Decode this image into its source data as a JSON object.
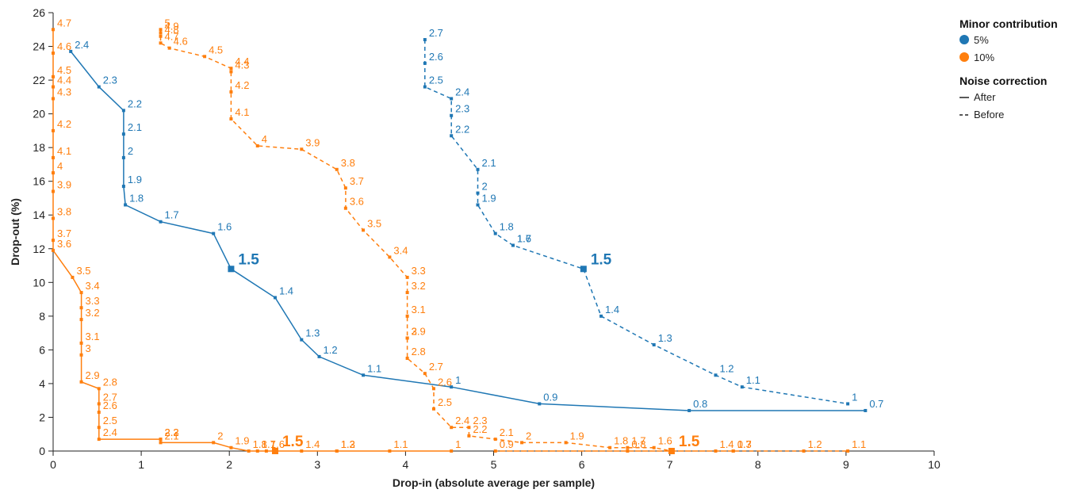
{
  "chart_data": {
    "type": "line",
    "xlabel": "Drop-in (absolute average per sample)",
    "ylabel": "Drop-out (%)",
    "xlim": [
      0,
      10
    ],
    "ylim": [
      0,
      26
    ],
    "x_ticks": [
      "0",
      "1",
      "2",
      "3",
      "4",
      "5",
      "6",
      "7",
      "8",
      "9",
      "10"
    ],
    "y_ticks": [
      "0",
      "2",
      "4",
      "6",
      "8",
      "10",
      "12",
      "14",
      "16",
      "18",
      "20",
      "22",
      "24",
      "26"
    ],
    "grid": false,
    "legend_position": "top-right",
    "legend": {
      "color_title": "Minor contribution",
      "color_items": [
        {
          "label": "5%",
          "color": "#1f77b4"
        },
        {
          "label": "10%",
          "color": "#ff7f0e"
        }
      ],
      "style_title": "Noise correction",
      "style_items": [
        {
          "label": "After",
          "dash": "solid"
        },
        {
          "label": "Before",
          "dash": "dashed"
        }
      ]
    },
    "colors": {
      "5%": "#1f77b4",
      "10%": "#ff7f0e"
    },
    "highlight_label": "1.5",
    "series": [
      {
        "contribution": "5%",
        "correction": "After",
        "points": [
          {
            "x": 0.2,
            "y": 23.7,
            "label": "2.4"
          },
          {
            "x": 0.52,
            "y": 21.6,
            "label": "2.3"
          },
          {
            "x": 0.8,
            "y": 20.2,
            "label": "2.2"
          },
          {
            "x": 0.8,
            "y": 18.8,
            "label": "2.1"
          },
          {
            "x": 0.8,
            "y": 17.4,
            "label": "2"
          },
          {
            "x": 0.8,
            "y": 15.7,
            "label": "1.9"
          },
          {
            "x": 0.82,
            "y": 14.6,
            "label": "1.8"
          },
          {
            "x": 1.22,
            "y": 13.6,
            "label": "1.7"
          },
          {
            "x": 1.82,
            "y": 12.9,
            "label": "1.6"
          },
          {
            "x": 2.02,
            "y": 10.8,
            "label": "1.5"
          },
          {
            "x": 2.52,
            "y": 9.1,
            "label": "1.4"
          },
          {
            "x": 2.82,
            "y": 6.6,
            "label": "1.3"
          },
          {
            "x": 3.02,
            "y": 5.6,
            "label": "1.2"
          },
          {
            "x": 3.52,
            "y": 4.5,
            "label": "1.1"
          },
          {
            "x": 4.52,
            "y": 3.8,
            "label": "1"
          },
          {
            "x": 5.52,
            "y": 2.8,
            "label": "0.9"
          },
          {
            "x": 7.22,
            "y": 2.4,
            "label": "0.8"
          },
          {
            "x": 9.22,
            "y": 2.4,
            "label": "0.7"
          }
        ]
      },
      {
        "contribution": "5%",
        "correction": "Before",
        "points": [
          {
            "x": 4.22,
            "y": 24.4,
            "label": "2.7"
          },
          {
            "x": 4.22,
            "y": 23.0,
            "label": "2.6"
          },
          {
            "x": 4.22,
            "y": 21.6,
            "label": "2.5"
          },
          {
            "x": 4.52,
            "y": 20.9,
            "label": "2.4"
          },
          {
            "x": 4.52,
            "y": 19.9,
            "label": "2.3"
          },
          {
            "x": 4.52,
            "y": 18.7,
            "label": "2.2"
          },
          {
            "x": 4.82,
            "y": 16.7,
            "label": "2.1"
          },
          {
            "x": 4.82,
            "y": 15.3,
            "label": "2"
          },
          {
            "x": 4.82,
            "y": 14.6,
            "label": "1.9"
          },
          {
            "x": 5.02,
            "y": 12.9,
            "label": "1.8"
          },
          {
            "x": 5.22,
            "y": 12.2,
            "label": "1.7"
          },
          {
            "x": 5.22,
            "y": 12.2,
            "label": "1.6"
          },
          {
            "x": 6.02,
            "y": 10.8,
            "label": "1.5"
          },
          {
            "x": 6.22,
            "y": 8.0,
            "label": "1.4"
          },
          {
            "x": 6.82,
            "y": 6.3,
            "label": "1.3"
          },
          {
            "x": 7.52,
            "y": 4.5,
            "label": "1.2"
          },
          {
            "x": 7.82,
            "y": 3.8,
            "label": "1.1"
          },
          {
            "x": 9.02,
            "y": 2.8,
            "label": "1"
          }
        ]
      },
      {
        "contribution": "10%",
        "correction": "After",
        "points": [
          {
            "x": 0.0,
            "y": 25.0,
            "label": "4.7"
          },
          {
            "x": 0.0,
            "y": 23.6,
            "label": "4.6"
          },
          {
            "x": 0.0,
            "y": 22.2,
            "label": "4.5"
          },
          {
            "x": 0.0,
            "y": 21.6,
            "label": "4.4"
          },
          {
            "x": 0.0,
            "y": 20.9,
            "label": "4.3"
          },
          {
            "x": 0.0,
            "y": 19.0,
            "label": "4.2"
          },
          {
            "x": 0.0,
            "y": 17.4,
            "label": "4.1"
          },
          {
            "x": 0.0,
            "y": 16.5,
            "label": "4"
          },
          {
            "x": 0.0,
            "y": 15.4,
            "label": "3.9"
          },
          {
            "x": 0.0,
            "y": 13.8,
            "label": "3.8"
          },
          {
            "x": 0.0,
            "y": 12.5,
            "label": "3.7"
          },
          {
            "x": 0.0,
            "y": 11.9,
            "label": "3.6"
          },
          {
            "x": 0.22,
            "y": 10.3,
            "label": "3.5"
          },
          {
            "x": 0.32,
            "y": 9.4,
            "label": "3.4"
          },
          {
            "x": 0.32,
            "y": 8.5,
            "label": "3.3"
          },
          {
            "x": 0.32,
            "y": 7.8,
            "label": "3.2"
          },
          {
            "x": 0.32,
            "y": 6.4,
            "label": "3.1"
          },
          {
            "x": 0.32,
            "y": 5.7,
            "label": "3"
          },
          {
            "x": 0.32,
            "y": 4.1,
            "label": "2.9"
          },
          {
            "x": 0.52,
            "y": 3.7,
            "label": "2.8"
          },
          {
            "x": 0.52,
            "y": 2.8,
            "label": "2.7"
          },
          {
            "x": 0.52,
            "y": 2.3,
            "label": "2.6"
          },
          {
            "x": 0.52,
            "y": 1.4,
            "label": "2.5"
          },
          {
            "x": 0.52,
            "y": 0.7,
            "label": "2.4"
          },
          {
            "x": 1.22,
            "y": 0.7,
            "label": "2.3"
          },
          {
            "x": 1.22,
            "y": 0.7,
            "label": "2.2"
          },
          {
            "x": 1.22,
            "y": 0.5,
            "label": "2.1"
          },
          {
            "x": 1.82,
            "y": 0.5,
            "label": "2"
          },
          {
            "x": 2.02,
            "y": 0.2,
            "label": "1.9"
          },
          {
            "x": 2.22,
            "y": 0.0,
            "label": "1.8"
          },
          {
            "x": 2.32,
            "y": 0.0,
            "label": "1.7"
          },
          {
            "x": 2.42,
            "y": 0.0,
            "label": "1.6"
          },
          {
            "x": 2.52,
            "y": 0.0,
            "label": "1.5"
          },
          {
            "x": 2.82,
            "y": 0.0,
            "label": "1.4"
          },
          {
            "x": 3.22,
            "y": 0.0,
            "label": "1.3"
          },
          {
            "x": 3.22,
            "y": 0.0,
            "label": "1.2"
          },
          {
            "x": 3.82,
            "y": 0.0,
            "label": "1.1"
          },
          {
            "x": 4.52,
            "y": 0.0,
            "label": "1"
          }
        ]
      },
      {
        "contribution": "10%",
        "correction": "Before",
        "points": [
          {
            "x": 1.22,
            "y": 25.0,
            "label": "5"
          },
          {
            "x": 1.22,
            "y": 24.8,
            "label": "4.9"
          },
          {
            "x": 1.22,
            "y": 24.6,
            "label": "4.8"
          },
          {
            "x": 1.22,
            "y": 24.2,
            "label": "4.7"
          },
          {
            "x": 1.32,
            "y": 23.9,
            "label": "4.6"
          },
          {
            "x": 1.72,
            "y": 23.4,
            "label": "4.5"
          },
          {
            "x": 2.02,
            "y": 22.7,
            "label": "4.4"
          },
          {
            "x": 2.02,
            "y": 22.5,
            "label": "4.3"
          },
          {
            "x": 2.02,
            "y": 21.3,
            "label": "4.2"
          },
          {
            "x": 2.02,
            "y": 19.7,
            "label": "4.1"
          },
          {
            "x": 2.32,
            "y": 18.1,
            "label": "4"
          },
          {
            "x": 2.82,
            "y": 17.9,
            "label": "3.9"
          },
          {
            "x": 3.22,
            "y": 16.7,
            "label": "3.8"
          },
          {
            "x": 3.32,
            "y": 15.6,
            "label": "3.7"
          },
          {
            "x": 3.32,
            "y": 14.4,
            "label": "3.6"
          },
          {
            "x": 3.52,
            "y": 13.1,
            "label": "3.5"
          },
          {
            "x": 3.82,
            "y": 11.5,
            "label": "3.4"
          },
          {
            "x": 4.02,
            "y": 10.3,
            "label": "3.3"
          },
          {
            "x": 4.02,
            "y": 9.4,
            "label": "3.2"
          },
          {
            "x": 4.02,
            "y": 8.0,
            "label": "3.1"
          },
          {
            "x": 4.02,
            "y": 6.7,
            "label": "3"
          },
          {
            "x": 4.02,
            "y": 6.7,
            "label": "2.9"
          },
          {
            "x": 4.02,
            "y": 5.5,
            "label": "2.8"
          },
          {
            "x": 4.22,
            "y": 4.6,
            "label": "2.7"
          },
          {
            "x": 4.32,
            "y": 3.7,
            "label": "2.6"
          },
          {
            "x": 4.32,
            "y": 2.5,
            "label": "2.5"
          },
          {
            "x": 4.52,
            "y": 1.4,
            "label": "2.4"
          },
          {
            "x": 4.72,
            "y": 1.4,
            "label": "2.3"
          },
          {
            "x": 4.72,
            "y": 0.9,
            "label": "2.2"
          },
          {
            "x": 5.02,
            "y": 0.7,
            "label": "2.1"
          },
          {
            "x": 5.32,
            "y": 0.5,
            "label": "2"
          },
          {
            "x": 5.82,
            "y": 0.5,
            "label": "1.9"
          },
          {
            "x": 6.32,
            "y": 0.2,
            "label": "1.8"
          },
          {
            "x": 6.52,
            "y": 0.2,
            "label": "1.7"
          },
          {
            "x": 6.82,
            "y": 0.2,
            "label": "1.6"
          },
          {
            "x": 7.02,
            "y": 0.0,
            "label": "1.5"
          },
          {
            "x": 7.52,
            "y": 0.0,
            "label": "1.4"
          },
          {
            "x": 7.72,
            "y": 0.0,
            "label": "1.3"
          },
          {
            "x": 8.52,
            "y": 0.0,
            "label": "1.2"
          },
          {
            "x": 9.02,
            "y": 0.0,
            "label": "1.1"
          },
          {
            "x": 5.02,
            "y": 0.0,
            "label": "0.9"
          },
          {
            "x": 6.52,
            "y": 0.0,
            "label": "0.8"
          },
          {
            "x": 7.72,
            "y": 0.0,
            "label": "0.7"
          }
        ]
      }
    ]
  }
}
